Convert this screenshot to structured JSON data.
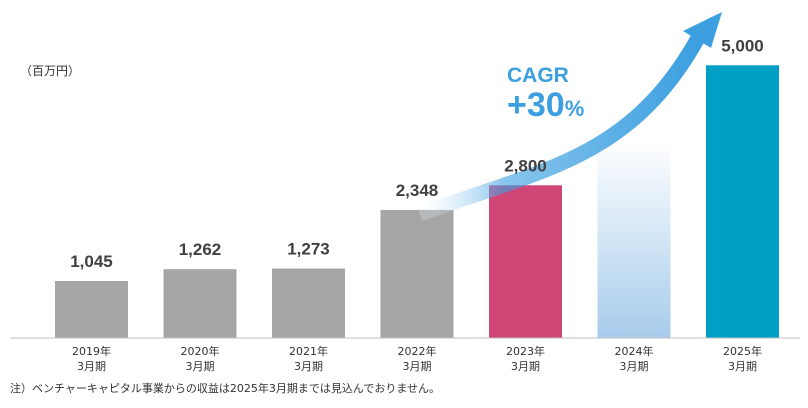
{
  "unit_label": "（百万円）",
  "footnote": "注）ベンチャーキャピタル事業からの収益は2025年3月期までは見込んでおりません。",
  "cagr": {
    "label": "CAGR",
    "value": "+30",
    "suffix": "%"
  },
  "colors": {
    "actual": "#a6a6a6",
    "forecast_current": "#cf4677",
    "projection_gradient_top": "#ffffff",
    "projection_gradient_bottom": "#a7cceb",
    "target": "#00a0c6",
    "arrow": "#3b9fe0",
    "cagr_text": "#3b9fe0",
    "value_label": "#404040",
    "axis": "#bfbfbf"
  },
  "chart_data": {
    "type": "bar",
    "categories": [
      {
        "year": "2019年",
        "period": "3月期"
      },
      {
        "year": "2020年",
        "period": "3月期"
      },
      {
        "year": "2021年",
        "period": "3月期"
      },
      {
        "year": "2022年",
        "period": "3月期"
      },
      {
        "year": "2023年",
        "period": "3月期"
      },
      {
        "year": "2024年",
        "period": "3月期"
      },
      {
        "year": "2025年",
        "period": "3月期"
      }
    ],
    "values": [
      1045,
      1262,
      1273,
      2348,
      2800,
      null,
      5000
    ],
    "value_labels": [
      "1,045",
      "1,262",
      "1,273",
      "2,348",
      "2,800",
      "",
      "5,000"
    ],
    "projection_bar_value": 3650,
    "bar_styles": [
      "actual",
      "actual",
      "actual",
      "actual",
      "forecast_current",
      "projection",
      "target"
    ],
    "ylim": [
      0,
      5500
    ],
    "grid": false,
    "legend": "none",
    "xlabel": "",
    "ylabel": ""
  }
}
